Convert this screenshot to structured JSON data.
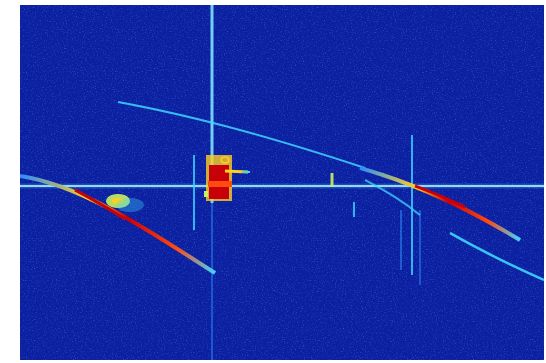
{
  "image": {
    "kind": "spectrogram",
    "colormap": [
      "#0a1f9e",
      "#1240d8",
      "#2a8cff",
      "#3fd6ff",
      "#c8f060",
      "#ffd020",
      "#ff4a10",
      "#c8000a"
    ],
    "background_color": "#0b1fa0",
    "frame_color": "#ffffff"
  }
}
